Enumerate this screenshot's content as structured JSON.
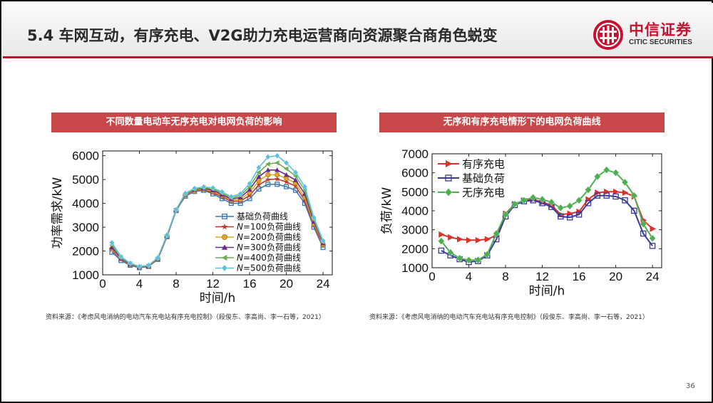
{
  "slide": {
    "title": "5.4 车网互动，有序充电、V2G助力充电运营商向资源聚合商角色蜕变",
    "logo_cn": "中信证券",
    "logo_en": "CITIC SECURITIES",
    "page_number": "36"
  },
  "left_panel": {
    "header": "不同数量电动车无序充电对电网负荷的影响",
    "source": "资料来源：《考虑风电消纳的电动汽车充电站有序充电控制》（段俊东、李高尚、李一石等，2021）"
  },
  "right_panel": {
    "header": "无序和有序充电情形下的电网负荷曲线",
    "source": "资料来源：《考虑风电消纳的电动汽车充电站有序充电控制》（段俊东、李高尚、李一石等，2021）"
  },
  "chart_data": [
    {
      "type": "line",
      "xlabel": "时间/h",
      "ylabel": "功率需求/kW",
      "xlim": [
        0,
        25
      ],
      "ylim": [
        1000,
        6200
      ],
      "xticks": [
        0,
        4,
        8,
        12,
        16,
        20,
        24
      ],
      "yticks": [
        1000,
        2000,
        3000,
        4000,
        5000,
        6000
      ],
      "legend_position": "lower-right",
      "x": [
        1,
        2,
        3,
        4,
        5,
        6,
        7,
        8,
        9,
        10,
        11,
        12,
        13,
        14,
        15,
        16,
        17,
        18,
        19,
        20,
        21,
        22,
        23,
        24
      ],
      "series": [
        {
          "name": "基础负荷曲线",
          "color": "#3a78b5",
          "marker": "square",
          "values": [
            1950,
            1600,
            1400,
            1300,
            1350,
            1650,
            2600,
            3700,
            4300,
            4500,
            4550,
            4400,
            4200,
            4000,
            4000,
            4200,
            4600,
            4800,
            4800,
            4700,
            4550,
            4000,
            3000,
            2150
          ]
        },
        {
          "name": "N=100负荷曲线",
          "color": "#c0392b",
          "marker": "star",
          "values": [
            2050,
            1650,
            1420,
            1310,
            1360,
            1660,
            2620,
            3710,
            4330,
            4530,
            4570,
            4450,
            4280,
            4080,
            4100,
            4330,
            4780,
            5000,
            5020,
            4900,
            4720,
            4120,
            3080,
            2220
          ]
        },
        {
          "name": "N=200负荷曲线",
          "color": "#e0a52a",
          "marker": "circle",
          "values": [
            2100,
            1680,
            1440,
            1320,
            1370,
            1680,
            2640,
            3720,
            4350,
            4550,
            4600,
            4500,
            4330,
            4130,
            4170,
            4450,
            4950,
            5200,
            5200,
            5050,
            4850,
            4250,
            3150,
            2280
          ]
        },
        {
          "name": "N=300负荷曲线",
          "color": "#6a2a8a",
          "marker": "triangle",
          "values": [
            2150,
            1700,
            1450,
            1330,
            1380,
            1700,
            2650,
            3720,
            4370,
            4580,
            4630,
            4550,
            4370,
            4180,
            4250,
            4580,
            5120,
            5400,
            5400,
            5200,
            4980,
            4400,
            3230,
            2330
          ]
        },
        {
          "name": "N=400负荷曲线",
          "color": "#6ab04c",
          "marker": "triangle-left",
          "values": [
            2250,
            1730,
            1470,
            1340,
            1390,
            1710,
            2660,
            3730,
            4390,
            4600,
            4660,
            4600,
            4430,
            4230,
            4330,
            4700,
            5300,
            5650,
            5700,
            5450,
            5150,
            4550,
            3320,
            2380
          ]
        },
        {
          "name": "N=500负荷曲线",
          "color": "#5bc0de",
          "marker": "diamond",
          "values": [
            2350,
            1760,
            1490,
            1350,
            1400,
            1720,
            2670,
            3740,
            4420,
            4630,
            4690,
            4650,
            4480,
            4280,
            4400,
            4830,
            5500,
            5950,
            6000,
            5700,
            5300,
            4700,
            3400,
            2430
          ]
        }
      ]
    },
    {
      "type": "line",
      "xlabel": "时间/h",
      "ylabel": "负荷/kW",
      "xlim": [
        0,
        25
      ],
      "ylim": [
        1000,
        7000
      ],
      "xticks": [
        0,
        4,
        8,
        12,
        16,
        20,
        24
      ],
      "yticks": [
        1000,
        2000,
        3000,
        4000,
        5000,
        6000,
        7000
      ],
      "legend_position": "top-left",
      "x": [
        1,
        2,
        3,
        4,
        5,
        6,
        7,
        8,
        9,
        10,
        11,
        12,
        13,
        14,
        15,
        16,
        17,
        18,
        19,
        20,
        21,
        22,
        23,
        24
      ],
      "series": [
        {
          "name": "有序充电",
          "color": "#d9332b",
          "marker": "triangle-right",
          "values": [
            2750,
            2600,
            2500,
            2450,
            2450,
            2500,
            2700,
            3850,
            4350,
            4550,
            4600,
            4450,
            4300,
            3800,
            3850,
            3950,
            4600,
            4950,
            5000,
            5000,
            4950,
            4750,
            3500,
            3050
          ]
        },
        {
          "name": "基础负荷",
          "color": "#3a3a9a",
          "marker": "square",
          "values": [
            1900,
            1650,
            1450,
            1300,
            1350,
            1650,
            2500,
            3700,
            4300,
            4500,
            4550,
            4400,
            4200,
            3700,
            3650,
            3800,
            4400,
            4800,
            4800,
            4750,
            4550,
            4000,
            2800,
            2150
          ]
        },
        {
          "name": "无序充电",
          "color": "#4caf50",
          "marker": "diamond",
          "values": [
            2400,
            1800,
            1500,
            1400,
            1400,
            1700,
            2800,
            3800,
            4350,
            4550,
            4700,
            4600,
            4450,
            4150,
            4250,
            4550,
            5100,
            5800,
            6150,
            6000,
            5500,
            4800,
            3300,
            2550
          ]
        }
      ]
    }
  ]
}
